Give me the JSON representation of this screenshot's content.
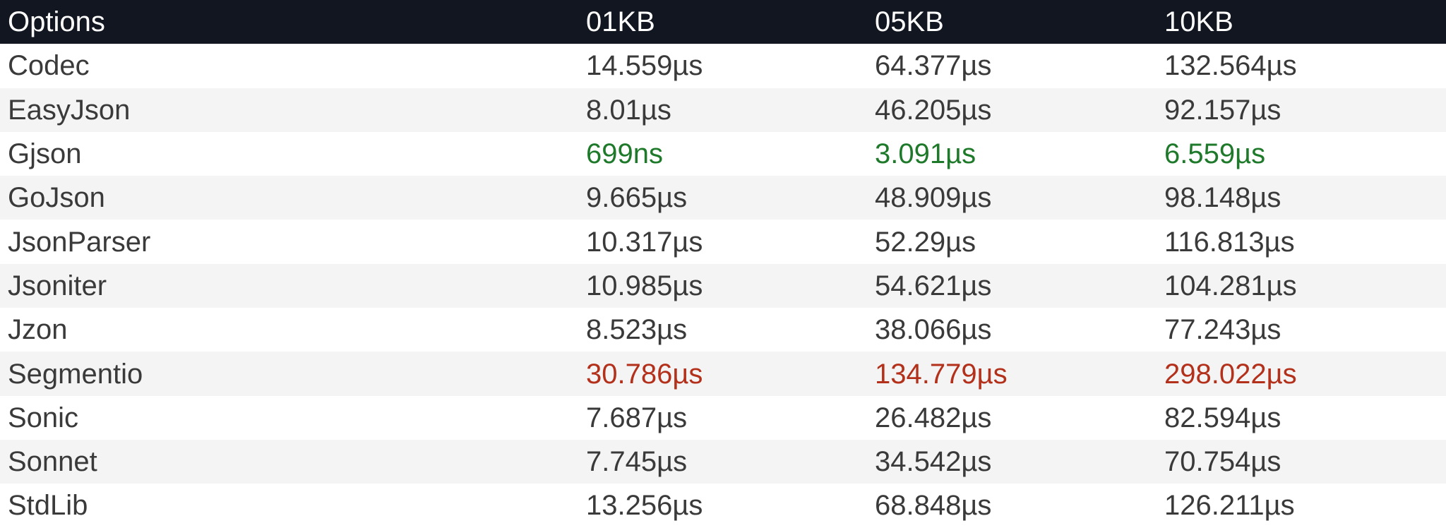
{
  "columns": [
    "Options",
    "01KB",
    "05KB",
    "10KB"
  ],
  "highlight_colors": {
    "best": "#1e7a2a",
    "worst": "#b3301b"
  },
  "rows": [
    {
      "option": "Codec",
      "kb01": "14.559µs",
      "kb05": "64.377µs",
      "kb10": "132.564µs",
      "status": "normal"
    },
    {
      "option": "EasyJson",
      "kb01": "8.01µs",
      "kb05": "46.205µs",
      "kb10": "92.157µs",
      "status": "normal"
    },
    {
      "option": "Gjson",
      "kb01": "699ns",
      "kb05": "3.091µs",
      "kb10": "6.559µs",
      "status": "best"
    },
    {
      "option": "GoJson",
      "kb01": "9.665µs",
      "kb05": "48.909µs",
      "kb10": "98.148µs",
      "status": "normal"
    },
    {
      "option": "JsonParser",
      "kb01": "10.317µs",
      "kb05": "52.29µs",
      "kb10": "116.813µs",
      "status": "normal"
    },
    {
      "option": "Jsoniter",
      "kb01": "10.985µs",
      "kb05": "54.621µs",
      "kb10": "104.281µs",
      "status": "normal"
    },
    {
      "option": "Jzon",
      "kb01": "8.523µs",
      "kb05": "38.066µs",
      "kb10": "77.243µs",
      "status": "normal"
    },
    {
      "option": "Segmentio",
      "kb01": "30.786µs",
      "kb05": "134.779µs",
      "kb10": "298.022µs",
      "status": "worst"
    },
    {
      "option": "Sonic",
      "kb01": "7.687µs",
      "kb05": "26.482µs",
      "kb10": "82.594µs",
      "status": "normal"
    },
    {
      "option": "Sonnet",
      "kb01": "7.745µs",
      "kb05": "34.542µs",
      "kb10": "70.754µs",
      "status": "normal"
    },
    {
      "option": "StdLib",
      "kb01": "13.256µs",
      "kb05": "68.848µs",
      "kb10": "126.211µs",
      "status": "normal"
    }
  ]
}
